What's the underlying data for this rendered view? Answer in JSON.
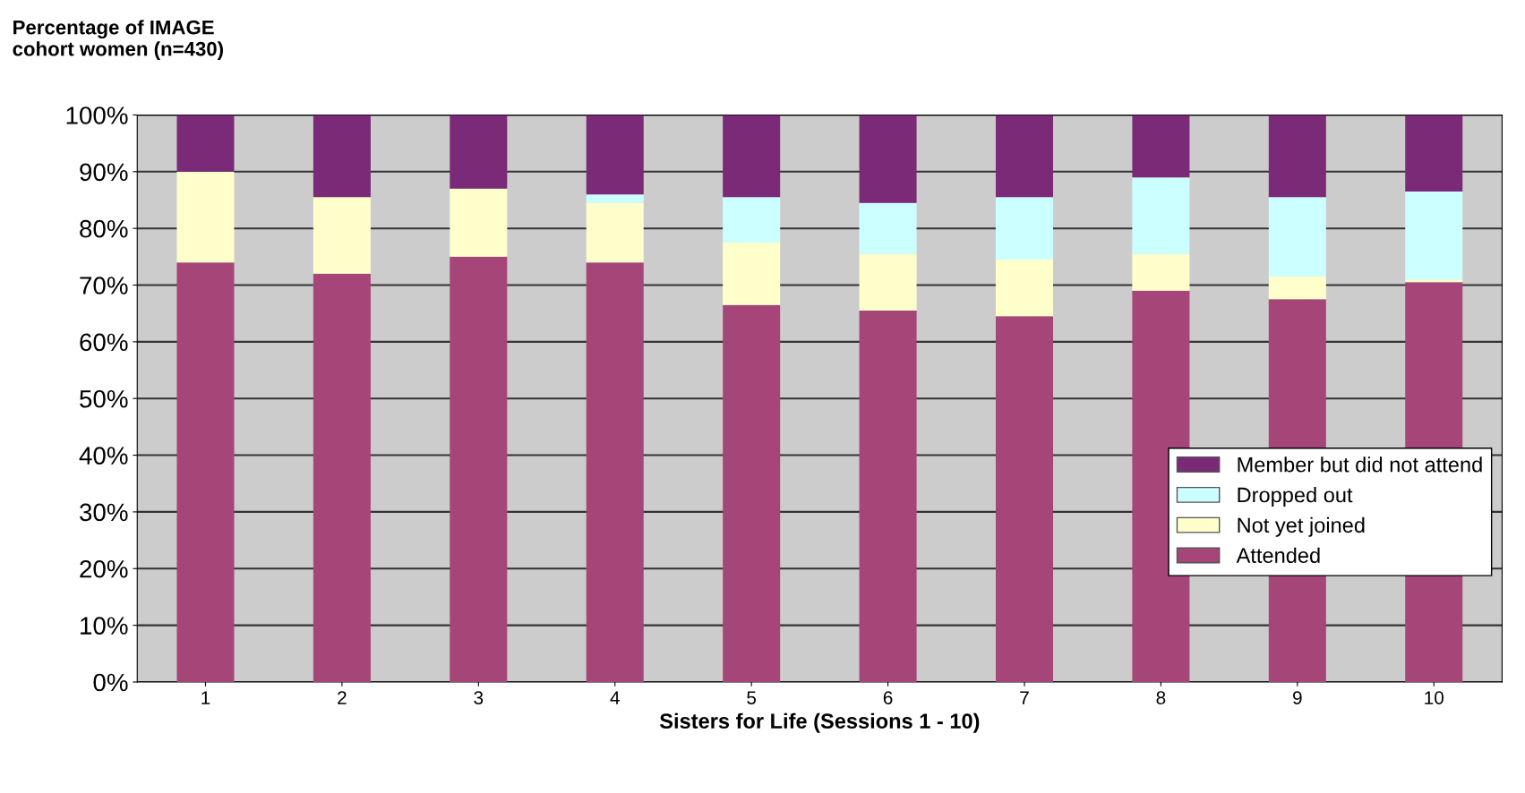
{
  "chart_data": {
    "type": "bar",
    "stacked": true,
    "ylabel": "Percentage of IMAGE\ncohort women (n=430)",
    "xlabel": "Sisters for Life (Sessions 1 - 10)",
    "categories": [
      "1",
      "2",
      "3",
      "4",
      "5",
      "6",
      "7",
      "8",
      "9",
      "10"
    ],
    "series": [
      {
        "name": "Attended",
        "color": "#a64577",
        "values": [
          74,
          72,
          75,
          74,
          66.5,
          65.5,
          64.5,
          69,
          67.5,
          70.5
        ]
      },
      {
        "name": "Not yet joined",
        "color": "#ffffcc",
        "values": [
          16,
          13.5,
          12,
          10.5,
          11,
          10,
          10,
          6.5,
          4,
          0.5
        ]
      },
      {
        "name": "Dropped out",
        "color": "#ccffff",
        "values": [
          0,
          0,
          0,
          1.5,
          8,
          9,
          11,
          13.5,
          14,
          15.5
        ]
      },
      {
        "name": "Member but did not attend",
        "color": "#7b2a78",
        "values": [
          10,
          14.5,
          13,
          14,
          14.5,
          15.5,
          14.5,
          11,
          14.5,
          13.5
        ]
      }
    ],
    "ylim": [
      0,
      100
    ],
    "yticks": [
      {
        "value": 0,
        "label": "0%"
      },
      {
        "value": 10,
        "label": "10%"
      },
      {
        "value": 20,
        "label": "20%"
      },
      {
        "value": 30,
        "label": "30%"
      },
      {
        "value": 40,
        "label": "40%"
      },
      {
        "value": 50,
        "label": "50%"
      },
      {
        "value": 60,
        "label": "60%"
      },
      {
        "value": 70,
        "label": "70%"
      },
      {
        "value": 80,
        "label": "80%"
      },
      {
        "value": 90,
        "label": "90%"
      },
      {
        "value": 100,
        "label": "100%"
      }
    ],
    "grid": "y",
    "legend": "right"
  }
}
